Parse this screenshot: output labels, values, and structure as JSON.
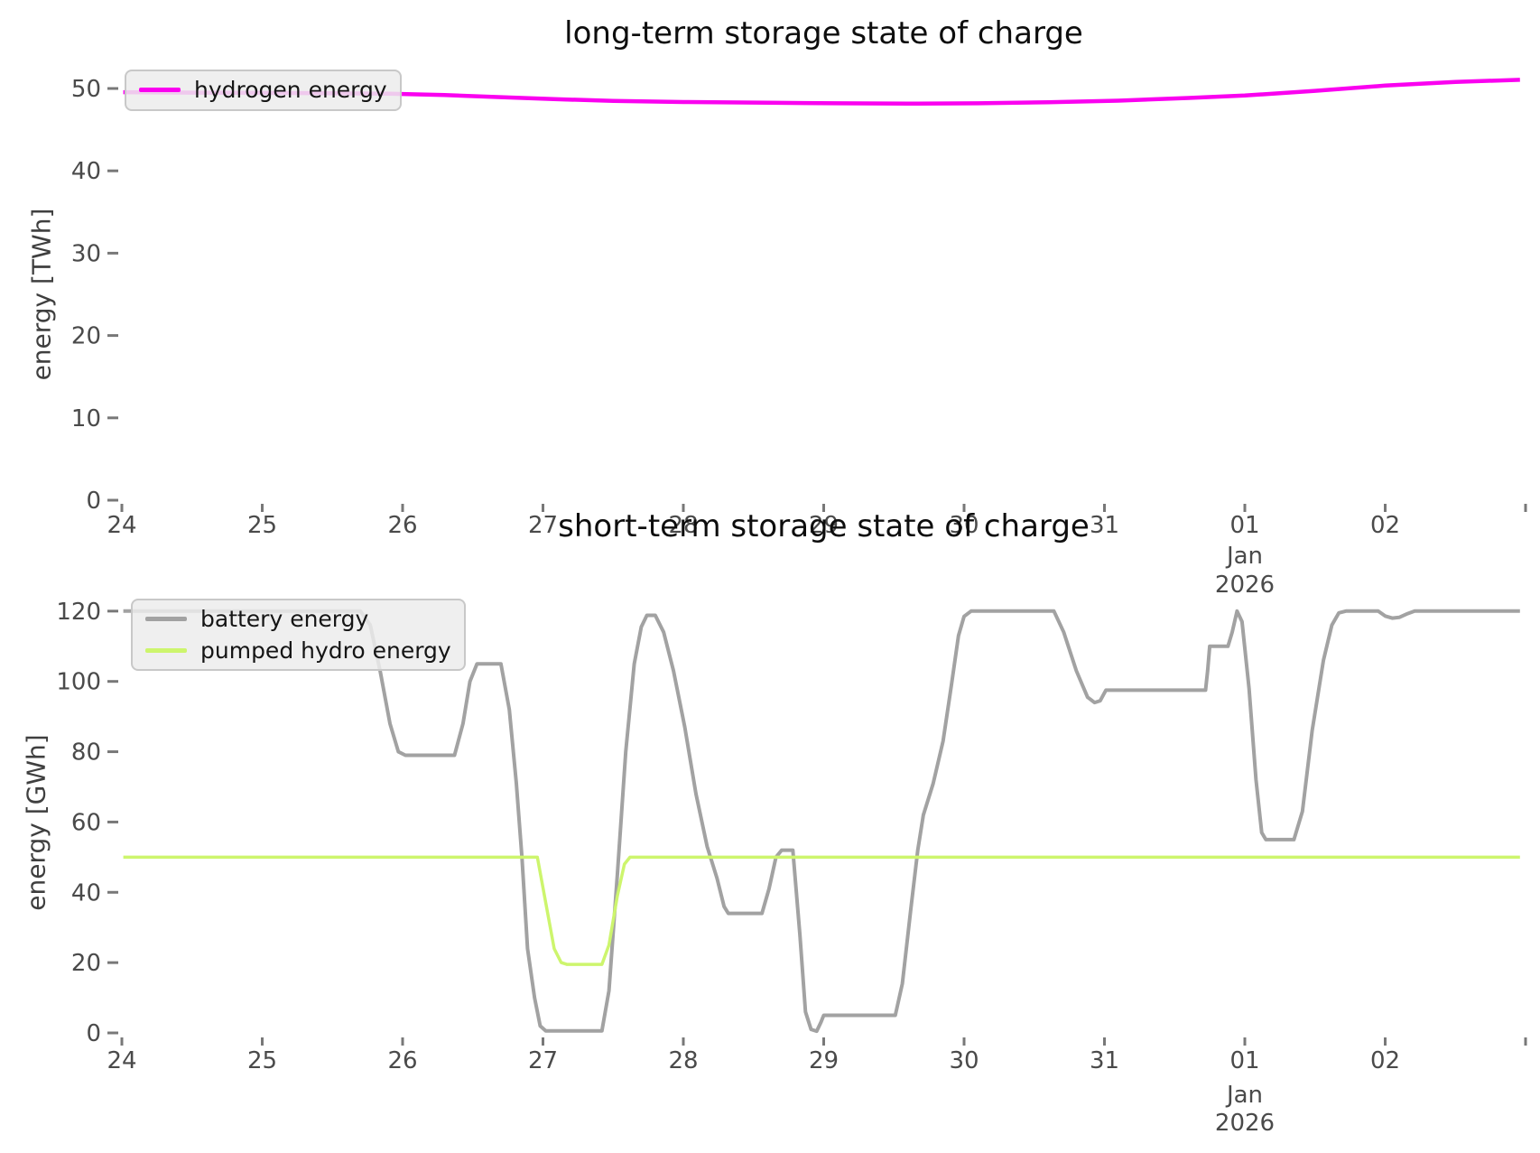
{
  "figure": {
    "background_color": "#ffffff",
    "tick_text_color": "#4a4a4a",
    "tick_mark_color": "#787878",
    "title_color": "#0d0d0d"
  },
  "chart_data": [
    {
      "type": "line",
      "title": "long-term storage state of charge",
      "xlabel": "",
      "ylabel": "energy [TWh]",
      "grid": false,
      "legend_position": "upper left",
      "ylim": [
        0,
        54
      ],
      "yticks": [
        0,
        10,
        20,
        30,
        40,
        50
      ],
      "x_axis": {
        "unit": "day of month",
        "tick_positions_days": [
          0,
          1,
          2,
          3,
          4,
          5,
          6,
          7,
          8,
          9,
          10
        ],
        "tick_labels": [
          "24",
          "25",
          "26",
          "27",
          "28",
          "29",
          "30",
          "31",
          "01",
          "02",
          ""
        ],
        "sublabel_index": 8,
        "sublabels": [
          "Jan",
          "2026"
        ]
      },
      "series": [
        {
          "name": "hydrogen energy",
          "color": "#fa00f0",
          "line_width": 4.5,
          "unit": "TWh",
          "points": [
            [
              0.01,
              49.55
            ],
            [
              0.5,
              49.5
            ],
            [
              1.0,
              49.46
            ],
            [
              1.5,
              49.42
            ],
            [
              1.9,
              49.36
            ],
            [
              2.3,
              49.2
            ],
            [
              2.7,
              48.95
            ],
            [
              3.1,
              48.7
            ],
            [
              3.5,
              48.5
            ],
            [
              4.0,
              48.35
            ],
            [
              4.6,
              48.27
            ],
            [
              5.1,
              48.2
            ],
            [
              5.6,
              48.16
            ],
            [
              6.1,
              48.2
            ],
            [
              6.6,
              48.33
            ],
            [
              7.1,
              48.52
            ],
            [
              7.6,
              48.85
            ],
            [
              8.0,
              49.15
            ],
            [
              8.5,
              49.72
            ],
            [
              9.0,
              50.35
            ],
            [
              9.5,
              50.8
            ],
            [
              9.96,
              51.05
            ]
          ]
        }
      ]
    },
    {
      "type": "line",
      "title": "short-term storage state of charge",
      "xlabel": "",
      "ylabel": "energy [GWh]",
      "grid": false,
      "legend_position": "upper left",
      "ylim": [
        -0.5,
        129
      ],
      "yticks": [
        0,
        20,
        40,
        60,
        80,
        100,
        120
      ],
      "x_axis": {
        "unit": "day of month",
        "tick_positions_days": [
          0,
          1,
          2,
          3,
          4,
          5,
          6,
          7,
          8,
          9,
          10
        ],
        "tick_labels": [
          "24",
          "25",
          "26",
          "27",
          "28",
          "29",
          "30",
          "31",
          "01",
          "02",
          ""
        ],
        "sublabel_index": 8,
        "sublabels": [
          "Jan",
          "2026"
        ]
      },
      "series": [
        {
          "name": "battery energy",
          "color": "#a2a2a2",
          "line_width": 4,
          "unit": "GWh",
          "points": [
            [
              0.01,
              120
            ],
            [
              1.7,
              120
            ],
            [
              1.77,
              116
            ],
            [
              1.84,
              103
            ],
            [
              1.91,
              88
            ],
            [
              1.97,
              80
            ],
            [
              2.02,
              79
            ],
            [
              2.37,
              79
            ],
            [
              2.43,
              88
            ],
            [
              2.48,
              100
            ],
            [
              2.53,
              105
            ],
            [
              2.7,
              105
            ],
            [
              2.76,
              92
            ],
            [
              2.81,
              71
            ],
            [
              2.85,
              50
            ],
            [
              2.89,
              24
            ],
            [
              2.94,
              10
            ],
            [
              2.98,
              2
            ],
            [
              3.02,
              0.6
            ],
            [
              3.42,
              0.6
            ],
            [
              3.47,
              12
            ],
            [
              3.53,
              45
            ],
            [
              3.59,
              80
            ],
            [
              3.65,
              105
            ],
            [
              3.7,
              115.5
            ],
            [
              3.74,
              118.8
            ],
            [
              3.8,
              118.8
            ],
            [
              3.86,
              114
            ],
            [
              3.93,
              103
            ],
            [
              4.01,
              87
            ],
            [
              4.09,
              68
            ],
            [
              4.17,
              53
            ],
            [
              4.24,
              44
            ],
            [
              4.29,
              36
            ],
            [
              4.32,
              34
            ],
            [
              4.56,
              34
            ],
            [
              4.61,
              41
            ],
            [
              4.66,
              50
            ],
            [
              4.7,
              52
            ],
            [
              4.78,
              52
            ],
            [
              4.83,
              28
            ],
            [
              4.87,
              6
            ],
            [
              4.91,
              1
            ],
            [
              4.95,
              0.5
            ],
            [
              4.98,
              3
            ],
            [
              5.0,
              5
            ],
            [
              5.51,
              5
            ],
            [
              5.56,
              14
            ],
            [
              5.62,
              35
            ],
            [
              5.67,
              52
            ],
            [
              5.71,
              62
            ],
            [
              5.78,
              71
            ],
            [
              5.85,
              83
            ],
            [
              5.91,
              99
            ],
            [
              5.96,
              113
            ],
            [
              6.0,
              118.5
            ],
            [
              6.05,
              120
            ],
            [
              6.64,
              120
            ],
            [
              6.71,
              114
            ],
            [
              6.8,
              103
            ],
            [
              6.88,
              95.5
            ],
            [
              6.93,
              94
            ],
            [
              6.97,
              94.5
            ],
            [
              7.01,
              97.5
            ],
            [
              7.72,
              97.5
            ],
            [
              7.735,
              103
            ],
            [
              7.75,
              110
            ],
            [
              7.88,
              110
            ],
            [
              7.91,
              114
            ],
            [
              7.945,
              120
            ],
            [
              7.98,
              117
            ],
            [
              8.03,
              98
            ],
            [
              8.08,
              72
            ],
            [
              8.12,
              57
            ],
            [
              8.15,
              55
            ],
            [
              8.35,
              55
            ],
            [
              8.41,
              63
            ],
            [
              8.48,
              86
            ],
            [
              8.56,
              106
            ],
            [
              8.62,
              116
            ],
            [
              8.67,
              119.5
            ],
            [
              8.72,
              120
            ],
            [
              8.95,
              120
            ],
            [
              9.0,
              118.6
            ],
            [
              9.05,
              118
            ],
            [
              9.1,
              118.2
            ],
            [
              9.16,
              119.3
            ],
            [
              9.21,
              120
            ],
            [
              9.96,
              120
            ]
          ]
        },
        {
          "name": "pumped hydro energy",
          "color": "#cdf56d",
          "line_width": 3.5,
          "unit": "GWh",
          "points": [
            [
              0.01,
              50
            ],
            [
              2.96,
              50
            ],
            [
              3.02,
              37
            ],
            [
              3.08,
              24
            ],
            [
              3.13,
              20
            ],
            [
              3.17,
              19.5
            ],
            [
              3.42,
              19.5
            ],
            [
              3.47,
              25
            ],
            [
              3.53,
              39
            ],
            [
              3.58,
              48
            ],
            [
              3.62,
              50
            ],
            [
              9.96,
              50
            ]
          ]
        }
      ]
    }
  ]
}
